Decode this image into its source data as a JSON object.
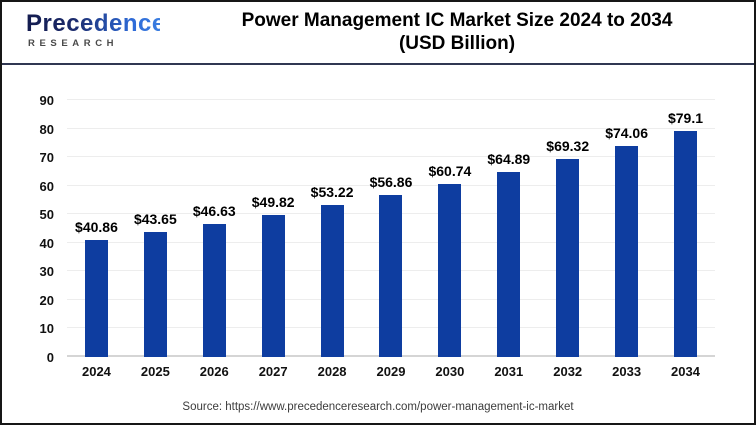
{
  "header": {
    "logo": {
      "brand": "Precedence",
      "sub": "RESEARCH"
    },
    "title_line1": "Power Management IC Market Size 2024 to 2034",
    "title_line2": "(USD Billion)"
  },
  "chart_data": {
    "type": "bar",
    "title": "Power Management IC Market Size 2024 to 2034 (USD Billion)",
    "categories": [
      "2024",
      "2025",
      "2026",
      "2027",
      "2028",
      "2029",
      "2030",
      "2031",
      "2032",
      "2033",
      "2034"
    ],
    "values": [
      40.86,
      43.65,
      46.63,
      49.82,
      53.22,
      56.86,
      60.74,
      64.89,
      69.32,
      74.06,
      79.1
    ],
    "value_labels": [
      "$40.86",
      "$43.65",
      "$46.63",
      "$49.82",
      "$53.22",
      "$56.86",
      "$60.74",
      "$64.89",
      "$69.32",
      "$74.06",
      "$79.1"
    ],
    "xlabel": "",
    "ylabel": "",
    "ylim": [
      0,
      90
    ],
    "yticks": [
      0,
      10,
      20,
      30,
      40,
      50,
      60,
      70,
      80,
      90
    ],
    "grid": true,
    "legend": false,
    "bar_color": "#0e3da0"
  },
  "footer": {
    "source": "Source: https://www.precedenceresearch.com/power-management-ic-market"
  }
}
